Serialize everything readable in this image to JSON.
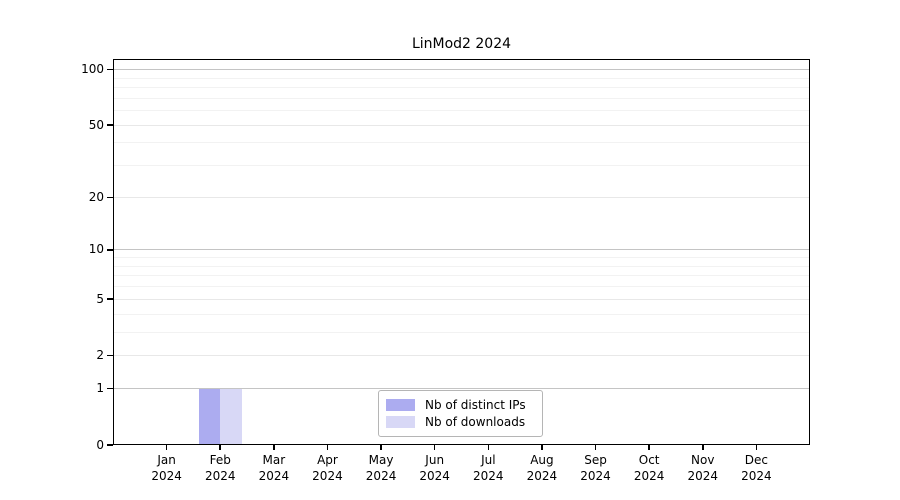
{
  "chart_data": {
    "type": "bar",
    "title": "LinMod2 2024",
    "categories": [
      "Jan",
      "Feb",
      "Mar",
      "Apr",
      "May",
      "Jun",
      "Jul",
      "Aug",
      "Sep",
      "Oct",
      "Nov",
      "Dec"
    ],
    "x_year_line": "2024",
    "series": [
      {
        "name": "Nb of distinct IPs",
        "color": "#acacf0",
        "values": [
          0,
          1,
          0,
          0,
          0,
          0,
          0,
          0,
          0,
          0,
          0,
          0
        ]
      },
      {
        "name": "Nb of downloads",
        "color": "#d8d8f6",
        "values": [
          0,
          1,
          0,
          0,
          0,
          0,
          0,
          0,
          0,
          0,
          0,
          0
        ]
      }
    ],
    "y_axis": {
      "scale": "log10(1+y)",
      "ticks": [
        0,
        1,
        2,
        5,
        10,
        20,
        50,
        100
      ],
      "minor_gridlines": [
        3,
        4,
        6,
        7,
        8,
        9,
        30,
        40,
        60,
        70,
        80,
        90
      ],
      "decade_gridlines": [
        1,
        10,
        100
      ],
      "top_value": 114
    },
    "grid": true,
    "legend": {
      "position": "bottom-center"
    },
    "colors": {
      "grid_decade": "#c4c4c4",
      "grid_major": "#e8e8e8",
      "grid_minor": "#f2f2f2",
      "axis": "#000000",
      "legend_border": "#b5b5b5",
      "background": "#ffffff"
    }
  }
}
